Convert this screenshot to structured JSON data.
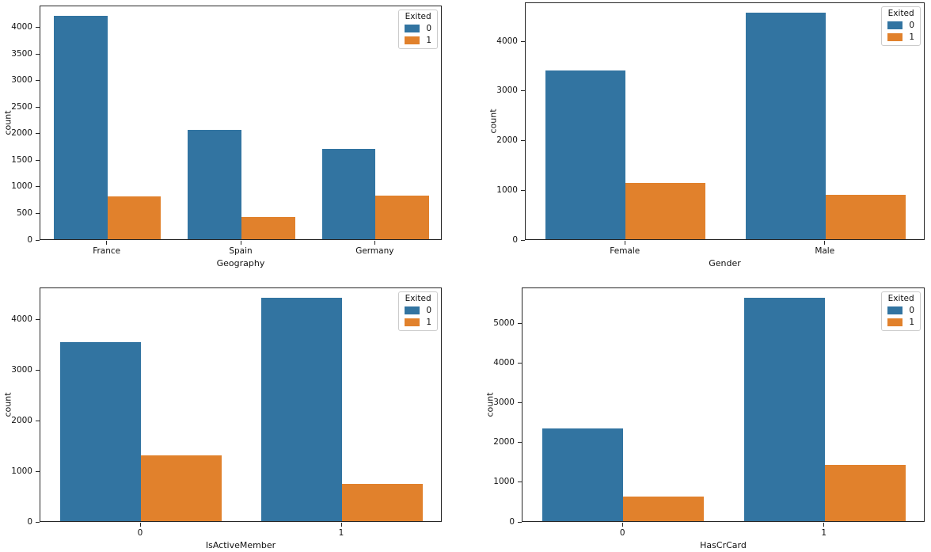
{
  "figure": {
    "background": "#ffffff",
    "rows": 2,
    "cols": 2
  },
  "palette": {
    "series_colors": [
      "#3274a1",
      "#e1812c"
    ],
    "spine_color": "#262626",
    "text_color": "#111111",
    "legend_border": "#cbcbcb"
  },
  "legend": {
    "title": "Exited",
    "entries": [
      "0",
      "1"
    ],
    "position": "upper right"
  },
  "chart_data": [
    {
      "type": "bar",
      "title": "",
      "xlabel": "Geography",
      "ylabel": "count",
      "categories": [
        "France",
        "Spain",
        "Germany"
      ],
      "series": [
        {
          "name": "0",
          "values": [
            4204,
            2064,
            1695
          ]
        },
        {
          "name": "1",
          "values": [
            810,
            413,
            814
          ]
        }
      ],
      "ylim": [
        0,
        4414
      ],
      "yticks": [
        0,
        500,
        1000,
        1500,
        2000,
        2500,
        3000,
        3500,
        4000
      ],
      "grid": false,
      "legend_position": "upper right"
    },
    {
      "type": "bar",
      "title": "",
      "xlabel": "Gender",
      "ylabel": "count",
      "categories": [
        "Female",
        "Male"
      ],
      "series": [
        {
          "name": "0",
          "values": [
            3404,
            4559
          ]
        },
        {
          "name": "1",
          "values": [
            1139,
            898
          ]
        }
      ],
      "ylim": [
        0,
        4787
      ],
      "yticks": [
        0,
        1000,
        2000,
        3000,
        4000
      ],
      "grid": false,
      "legend_position": "upper right"
    },
    {
      "type": "bar",
      "title": "",
      "xlabel": "IsActiveMember",
      "ylabel": "count",
      "categories": [
        "0",
        "1"
      ],
      "series": [
        {
          "name": "0",
          "values": [
            3547,
            4416
          ]
        },
        {
          "name": "1",
          "values": [
            1302,
            735
          ]
        }
      ],
      "ylim": [
        0,
        4637
      ],
      "yticks": [
        0,
        1000,
        2000,
        3000,
        4000
      ],
      "grid": false,
      "legend_position": "upper right"
    },
    {
      "type": "bar",
      "title": "",
      "xlabel": "HasCrCard",
      "ylabel": "count",
      "categories": [
        "0",
        "1"
      ],
      "series": [
        {
          "name": "0",
          "values": [
            2332,
            5631
          ]
        },
        {
          "name": "1",
          "values": [
            613,
            1424
          ]
        }
      ],
      "ylim": [
        0,
        5913
      ],
      "yticks": [
        0,
        1000,
        2000,
        3000,
        4000,
        5000
      ],
      "grid": false,
      "legend_position": "upper right"
    }
  ]
}
